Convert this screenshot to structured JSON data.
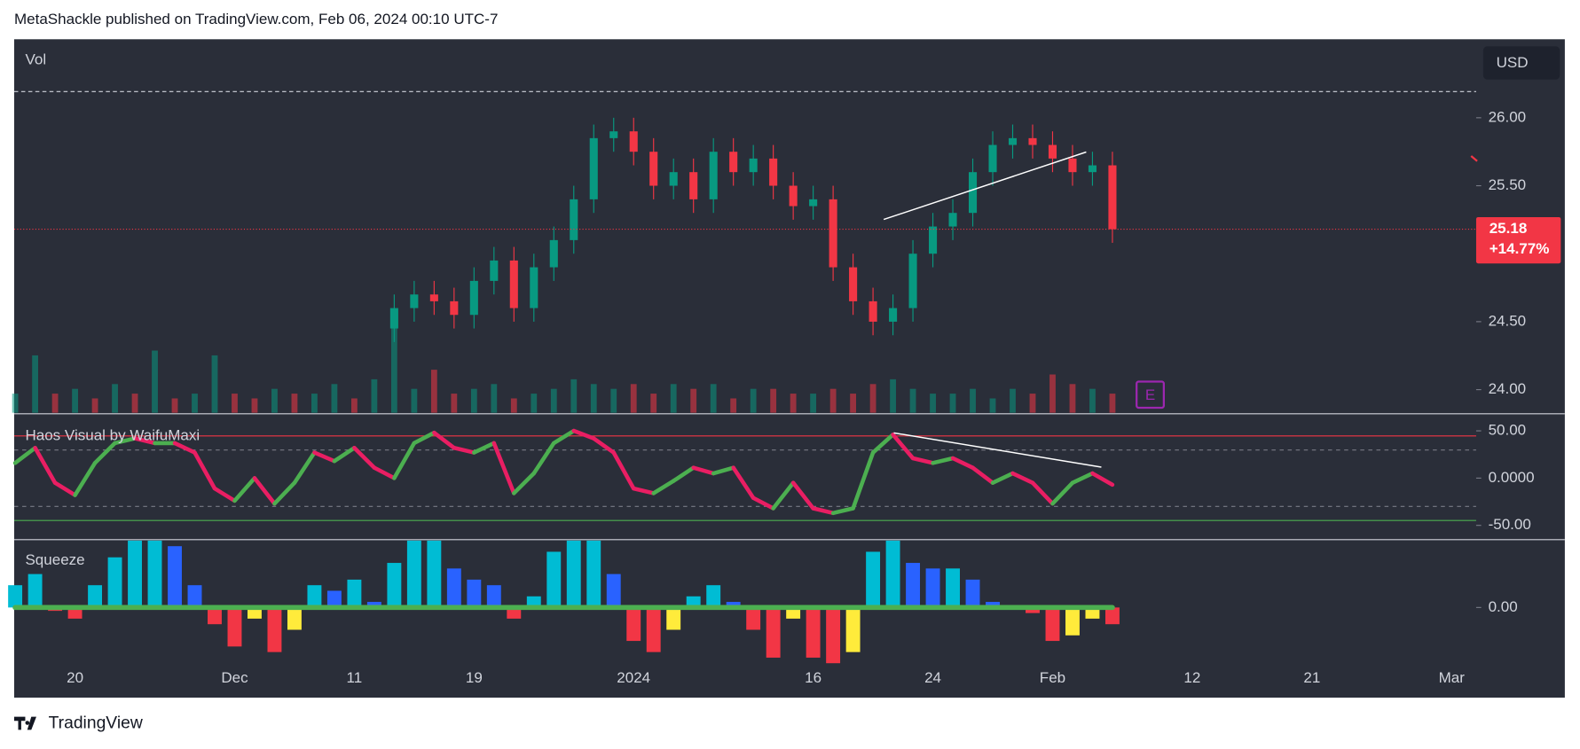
{
  "header": "MetaShackle published on TradingView.com, Feb 06, 2024 00:10 UTC-7",
  "footer": "TradingView",
  "chart_data": [
    {
      "type": "candlestick",
      "title": "Vol",
      "currency": "USD",
      "earnings_marker": "E",
      "categories": [
        null,
        null,
        null,
        "20",
        null,
        null,
        null,
        null,
        null,
        null,
        null,
        "Dec",
        null,
        null,
        null,
        null,
        null,
        "11",
        null,
        null,
        null,
        null,
        null,
        "19",
        null,
        null,
        null,
        null,
        null,
        null,
        null,
        "2024",
        null,
        null,
        null,
        null,
        null,
        null,
        null,
        null,
        "16",
        null,
        null,
        null,
        null,
        null,
        "24",
        null,
        null,
        null,
        null,
        null,
        "Feb",
        null,
        null,
        null,
        null,
        null,
        null,
        "12",
        null,
        null,
        null,
        null,
        null,
        "21",
        null,
        null,
        null,
        null,
        null,
        null,
        "Mar"
      ],
      "open": [
        null,
        null,
        null,
        null,
        null,
        null,
        null,
        null,
        null,
        null,
        null,
        null,
        null,
        null,
        null,
        null,
        null,
        null,
        null,
        24.45,
        24.6,
        24.7,
        24.65,
        24.55,
        24.8,
        24.95,
        24.6,
        24.9,
        25.1,
        25.4,
        25.85,
        25.9,
        25.75,
        25.5,
        25.6,
        25.4,
        25.75,
        25.6,
        25.7,
        25.5,
        25.35,
        25.4,
        24.9,
        24.65,
        24.5,
        24.6,
        25.0,
        25.2,
        25.3,
        25.6,
        25.8,
        25.85,
        25.8,
        25.7,
        25.6,
        25.65,
        null,
        null,
        null,
        null,
        null,
        null,
        null,
        null,
        null,
        null,
        null,
        null,
        null,
        null,
        null,
        null,
        null
      ],
      "high": [
        null,
        null,
        null,
        null,
        null,
        null,
        null,
        null,
        null,
        null,
        null,
        null,
        null,
        null,
        null,
        null,
        null,
        null,
        null,
        24.7,
        24.8,
        24.8,
        24.75,
        24.9,
        25.05,
        25.05,
        25.0,
        25.2,
        25.5,
        25.95,
        26.0,
        26.0,
        25.85,
        25.7,
        25.7,
        25.85,
        25.85,
        25.8,
        25.8,
        25.6,
        25.5,
        25.5,
        25.0,
        24.75,
        24.7,
        25.1,
        25.3,
        25.4,
        25.7,
        25.9,
        25.95,
        25.95,
        25.9,
        25.8,
        25.75,
        25.75,
        null,
        null,
        null,
        null,
        null,
        null,
        null,
        null,
        null,
        null,
        null,
        null,
        null,
        null,
        null,
        null,
        null
      ],
      "low": [
        null,
        null,
        null,
        null,
        null,
        null,
        null,
        null,
        null,
        null,
        null,
        null,
        null,
        null,
        null,
        null,
        null,
        null,
        null,
        24.35,
        24.5,
        24.55,
        24.45,
        24.45,
        24.7,
        24.5,
        24.5,
        24.8,
        25.0,
        25.3,
        25.75,
        25.65,
        25.4,
        25.4,
        25.3,
        25.3,
        25.5,
        25.5,
        25.4,
        25.25,
        25.25,
        24.8,
        24.55,
        24.4,
        24.4,
        24.5,
        24.9,
        25.1,
        25.2,
        25.5,
        25.7,
        25.7,
        25.6,
        25.5,
        25.5,
        25.08,
        null,
        null,
        null,
        null,
        null,
        null,
        null,
        null,
        null,
        null,
        null,
        null,
        null,
        null,
        null,
        null,
        null
      ],
      "close": [
        null,
        null,
        null,
        null,
        null,
        null,
        null,
        null,
        null,
        null,
        null,
        null,
        null,
        null,
        null,
        null,
        null,
        null,
        null,
        24.6,
        24.7,
        24.65,
        24.55,
        24.8,
        24.95,
        24.6,
        24.9,
        25.1,
        25.4,
        25.85,
        25.9,
        25.75,
        25.5,
        25.6,
        25.4,
        25.75,
        25.6,
        25.7,
        25.5,
        25.35,
        25.4,
        24.9,
        24.65,
        24.5,
        24.6,
        25.0,
        25.2,
        25.3,
        25.6,
        25.8,
        25.85,
        25.8,
        25.7,
        25.6,
        25.65,
        25.18,
        null,
        null,
        null,
        null,
        null,
        null,
        null,
        null,
        null,
        null,
        null,
        null,
        null,
        null,
        null,
        null,
        null
      ],
      "volume": [
        4,
        12,
        4,
        5,
        3,
        6,
        4,
        13,
        3,
        4,
        12,
        4,
        3,
        5,
        4,
        4,
        6,
        3,
        7,
        20,
        5,
        9,
        4,
        5,
        6,
        3,
        4,
        5,
        7,
        6,
        5,
        6,
        4,
        6,
        5,
        6,
        3,
        5,
        5,
        4,
        4,
        5,
        4,
        6,
        7,
        5,
        4,
        4,
        5,
        3,
        5,
        4,
        8,
        6,
        5,
        4,
        null,
        null,
        null,
        null,
        null,
        null,
        null,
        null,
        null,
        null,
        null,
        null,
        null,
        null,
        null,
        null,
        null
      ],
      "up_color": "#089981",
      "down_color": "#f23645",
      "ylim": [
        23.83,
        26.57
      ],
      "yticks": [
        {
          "value": 24,
          "label": "24.00"
        },
        {
          "value": 24.5,
          "label": "24.50"
        },
        {
          "value": 25.5,
          "label": "25.50"
        },
        {
          "value": 26,
          "label": "26.00"
        }
      ],
      "last_price": 25.18,
      "change": {
        "value": 14.77,
        "label": "+14.77%"
      }
    },
    {
      "type": "line",
      "title": "Haos Visual by WaifuMaxi",
      "values": [
        16,
        32,
        -5,
        -18,
        16,
        37,
        42,
        37,
        37,
        27,
        -11,
        -24,
        0,
        -27,
        -5,
        27,
        18,
        32,
        11,
        0,
        37,
        48,
        32,
        27,
        37,
        -16,
        5,
        37,
        50,
        42,
        27,
        -11,
        -16,
        -3,
        11,
        5,
        11,
        -21,
        -32,
        -5,
        -32,
        -37,
        -32,
        27,
        46,
        21,
        16,
        21,
        11,
        -5,
        5,
        -5,
        -27,
        -5,
        5,
        -7,
        null,
        null,
        null,
        null,
        null,
        null,
        null,
        null,
        null,
        null,
        null,
        null,
        null,
        null,
        null,
        null,
        null
      ],
      "rise_color": "#4caf50",
      "fall_color": "#e91e63",
      "ylim": [
        -64,
        67
      ],
      "yticks": [
        {
          "value": -50,
          "label": "-50.00"
        },
        {
          "value": 0,
          "label": "0.0000"
        },
        {
          "value": 50,
          "label": "50.00"
        }
      ]
    },
    {
      "type": "histogram",
      "title": "Squeeze",
      "values": [
        0.2,
        0.3,
        -0.03,
        -0.1,
        0.2,
        0.45,
        0.6,
        0.6,
        0.55,
        0.2,
        -0.15,
        -0.35,
        -0.1,
        -0.4,
        -0.2,
        0.2,
        0.15,
        0.25,
        0.05,
        0.4,
        0.6,
        0.6,
        0.35,
        0.25,
        0.2,
        -0.1,
        0.1,
        0.5,
        0.6,
        0.6,
        0.3,
        -0.3,
        -0.4,
        -0.2,
        0.1,
        0.2,
        0.05,
        -0.2,
        -0.45,
        -0.1,
        -0.45,
        -0.5,
        -0.4,
        0.5,
        0.6,
        0.4,
        0.35,
        0.35,
        0.25,
        0.05,
        -0.02,
        -0.05,
        -0.3,
        -0.25,
        -0.1,
        -0.15,
        null,
        null,
        null,
        null,
        null,
        null,
        null,
        null,
        null,
        null,
        null,
        null,
        null,
        null,
        null,
        null,
        null
      ],
      "colors": {
        "pos_up": "#00bcd4",
        "pos_down": "#2962ff",
        "neg_down": "#f23645",
        "neg_up": "#ffeb3b"
      },
      "ylim": [
        -0.8,
        0.6
      ],
      "yticks": [
        {
          "value": 0,
          "label": "0.00"
        }
      ]
    }
  ]
}
